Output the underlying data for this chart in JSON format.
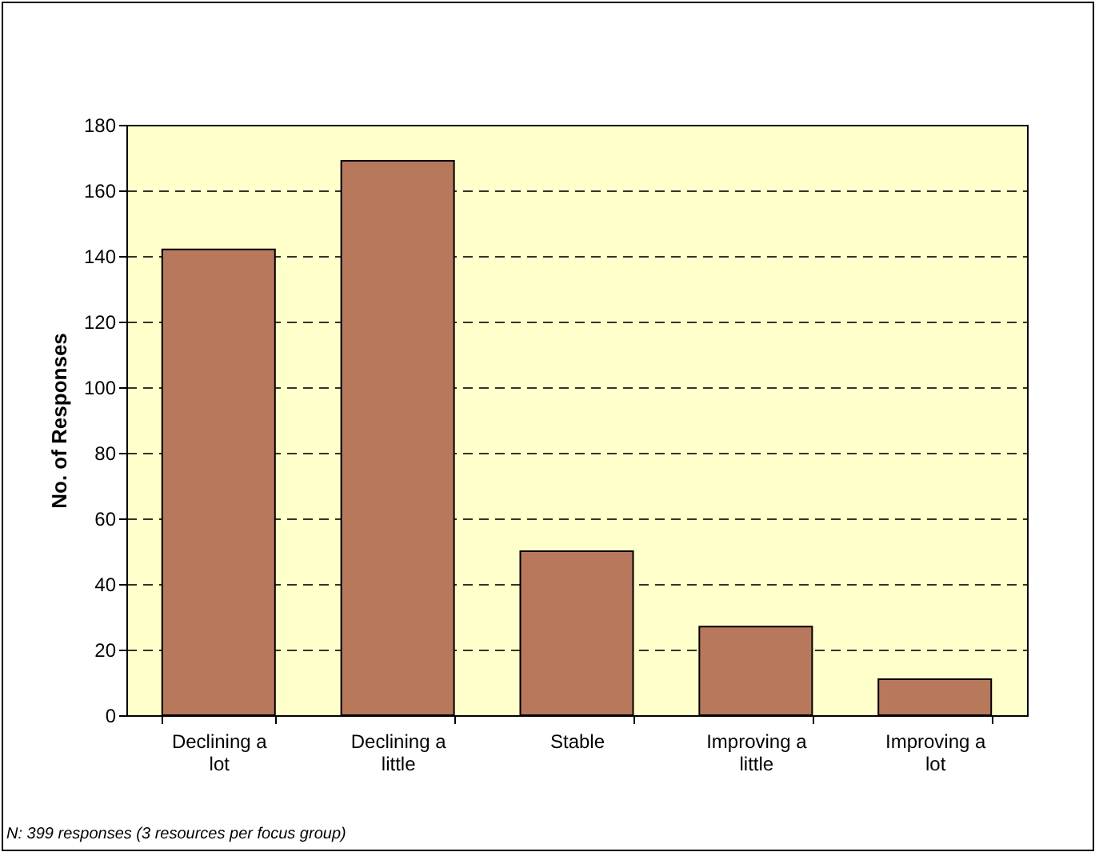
{
  "chart_data": {
    "type": "bar",
    "ylabel": "No. of Responses",
    "categories": [
      "Declining a lot",
      "Declining a little",
      "Stable",
      "Improving a little",
      "Improving a lot"
    ],
    "values": [
      142,
      169,
      50,
      27,
      11
    ],
    "color": "#b8785c",
    "ylim": [
      0,
      180
    ],
    "yticks": [
      0,
      20,
      40,
      60,
      80,
      100,
      120,
      140,
      160,
      180
    ],
    "grid": "y",
    "annotations": [
      "N: 399 responses (3 resources per focus group)"
    ]
  }
}
